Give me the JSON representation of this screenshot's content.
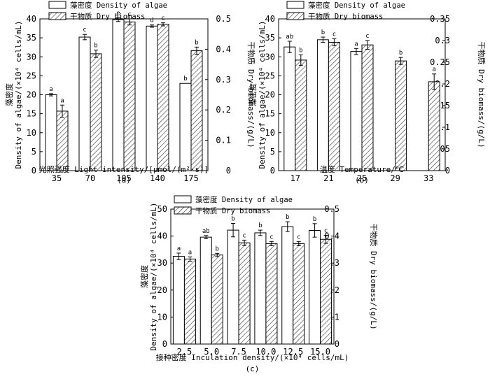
{
  "figure": {
    "legend": {
      "algae_label": "藻密度 Density of algae",
      "biomass_label": "干物质 Dry biomass"
    }
  },
  "chart_data": [
    {
      "id": "a",
      "type": "bar",
      "panel_label": "(a)",
      "xlabel": "光照强度 Light intensity/[μmol/(m²·s)]",
      "ylabel_cn": "藻密度",
      "ylabel": "Density of algae/(×10⁴ cells/mL)",
      "y2label": "干物质 Dry biomass/(g/L)",
      "categories": [
        "35",
        "70",
        "105",
        "140",
        "175"
      ],
      "ylim": [
        0,
        40
      ],
      "yticks": [
        "0",
        "5",
        "10",
        "15",
        "20",
        "25",
        "30",
        "35",
        "40"
      ],
      "y2lim": [
        0,
        0.5
      ],
      "y2ticks": [
        "0",
        "0.1",
        "0.2",
        "0.3",
        "0.4",
        "0.5"
      ],
      "series": [
        {
          "name": "Density of algae",
          "axis": "left",
          "values": [
            20.0,
            35.2,
            39.8,
            38.1,
            23.0
          ],
          "errors": [
            0.3,
            0.7,
            0.5,
            0.3,
            0.0
          ],
          "letters": [
            "a",
            "c",
            "e",
            "d",
            "b"
          ]
        },
        {
          "name": "Dry biomass",
          "axis": "right",
          "values": [
            0.196,
            0.385,
            0.49,
            0.482,
            0.395
          ],
          "errors": [
            0.02,
            0.012,
            0.01,
            0.005,
            0.012
          ],
          "letters": [
            "a",
            "b",
            "c",
            "c",
            "b"
          ]
        }
      ]
    },
    {
      "id": "b",
      "type": "bar",
      "panel_label": "(b)",
      "xlabel": "温度 Temperature/℃",
      "ylabel_cn": "藻密度",
      "ylabel": "Density of algae/(×10⁴ cells/mL)",
      "y2label": "干物质 Dry biomass/(g/L)",
      "categories": [
        "17",
        "21",
        "25",
        "29",
        "33"
      ],
      "ylim": [
        0,
        40
      ],
      "yticks": [
        "0",
        "5",
        "10",
        "15",
        "20",
        "25",
        "30",
        "35",
        "40"
      ],
      "y2lim": [
        0,
        0.35
      ],
      "y2ticks": [
        "0",
        "0.05",
        "0.1",
        "0.15",
        "0.2",
        "0.25",
        "0.3",
        "0.35"
      ],
      "series": [
        {
          "name": "Density of algae",
          "axis": "left",
          "values": [
            32.6,
            34.5,
            31.4,
            null,
            null
          ],
          "errors": [
            1.5,
            0.7,
            0.8,
            0,
            0
          ],
          "letters": [
            "ab",
            "b",
            "a",
            "",
            ""
          ]
        },
        {
          "name": "Dry biomass",
          "axis": "right",
          "values": [
            0.255,
            0.296,
            0.29,
            0.253,
            0.205
          ],
          "errors": [
            0.012,
            0.008,
            0.01,
            0.008,
            0.018
          ],
          "letters": [
            "b",
            "c",
            "c",
            "b",
            "a"
          ]
        }
      ]
    },
    {
      "id": "c",
      "type": "bar",
      "panel_label": "(c)",
      "xlabel": "接种密度 Inculation density/(×10⁴ cells/mL)",
      "ylabel_cn": "藻密度",
      "ylabel": "Density of algae/(×10⁴ cells/mL)",
      "y2label": "干物质 Dry biomass/(g/L)",
      "categories": [
        "2.5",
        "5.0",
        "7.5",
        "10.0",
        "12.5",
        "15.0"
      ],
      "ylim": [
        0,
        50
      ],
      "yticks": [
        "0",
        "10",
        "20",
        "30",
        "40",
        "50"
      ],
      "y2lim": [
        0,
        0.5
      ],
      "y2ticks": [
        "0",
        "0.1",
        "0.2",
        "0.3",
        "0.4",
        "0.5"
      ],
      "series": [
        {
          "name": "Density of algae",
          "axis": "left",
          "values": [
            32.5,
            39.6,
            42.2,
            41.2,
            43.5,
            42.1
          ],
          "errors": [
            1.2,
            0.6,
            2.5,
            1.0,
            1.8,
            2.5
          ],
          "letters": [
            "a",
            "ab",
            "b",
            "b",
            "b",
            "b"
          ]
        },
        {
          "name": "Dry biomass",
          "axis": "right",
          "values": [
            0.315,
            0.33,
            0.375,
            0.372,
            0.372,
            0.388
          ],
          "errors": [
            0.008,
            0.006,
            0.01,
            0.008,
            0.008,
            0.015
          ],
          "letters": [
            "a",
            "b",
            "c",
            "c",
            "c",
            "c"
          ]
        }
      ]
    }
  ]
}
